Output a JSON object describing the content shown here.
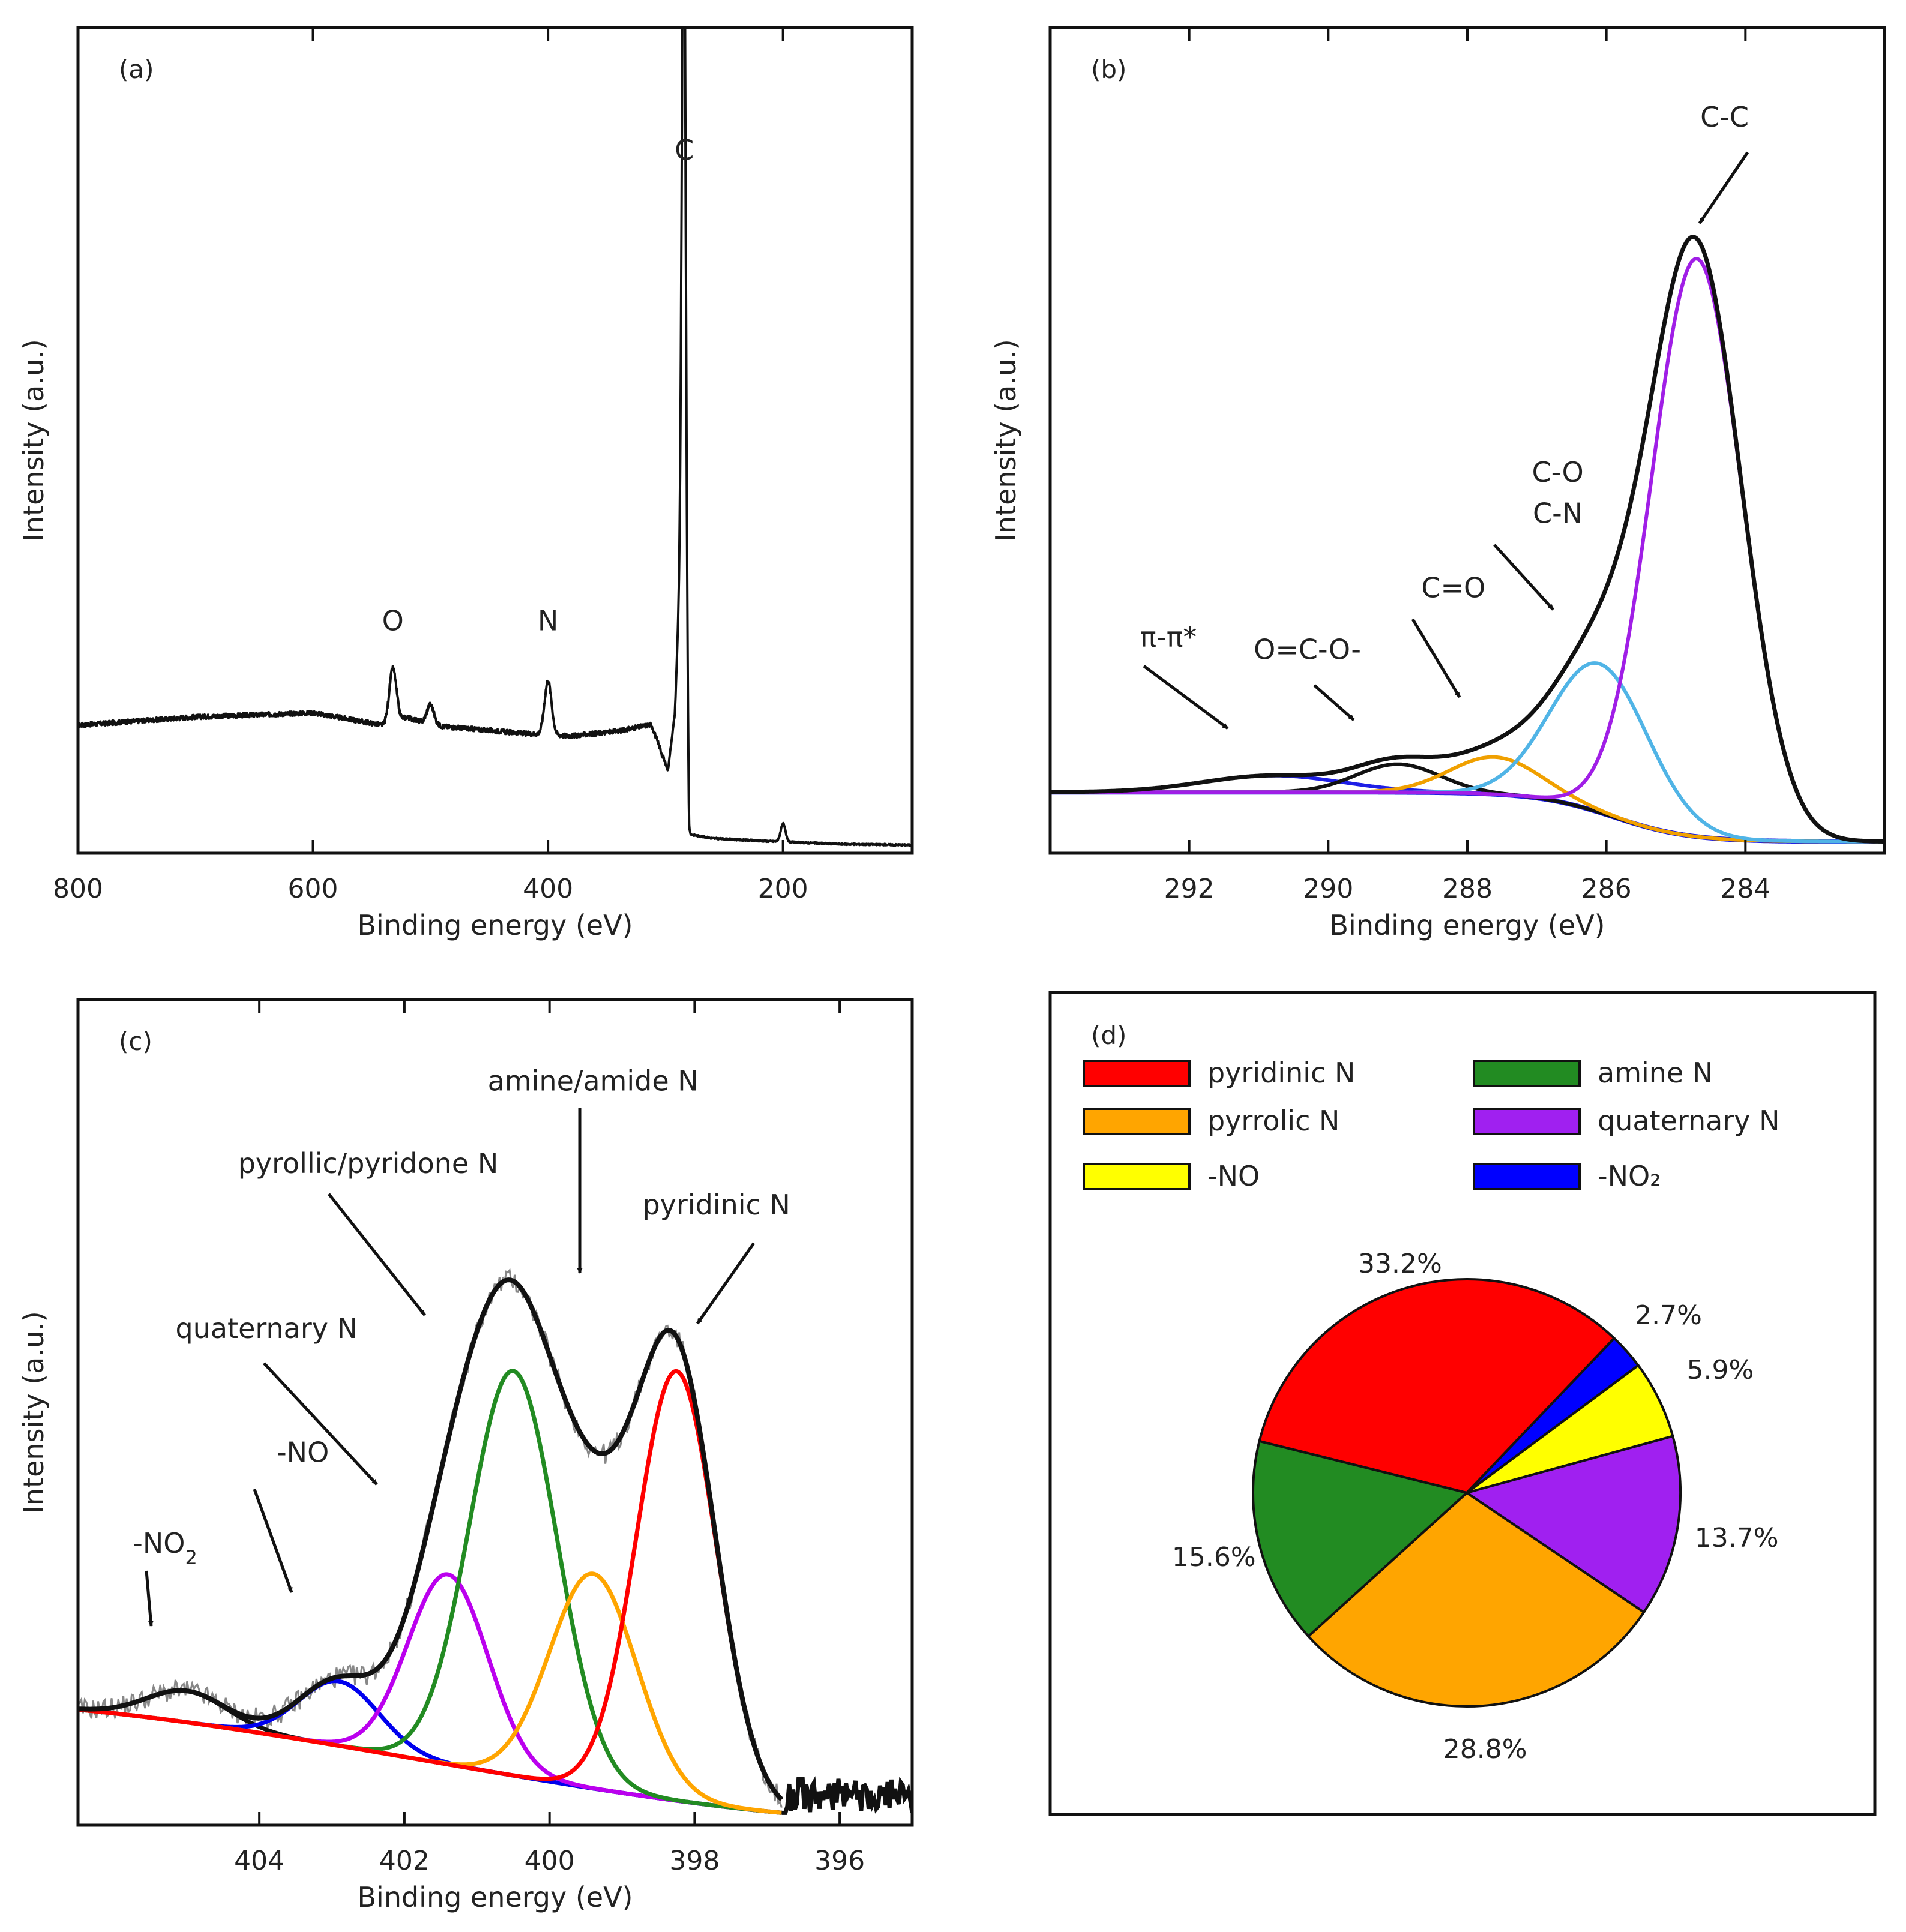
{
  "chart_data": [
    {
      "panel": "(a)",
      "type": "line",
      "xlabel": "Binding energy (eV)",
      "ylabel": "Intensity (a.u.)",
      "xlim": [
        800,
        90
      ],
      "ylim": [
        0,
        100
      ],
      "xticks": [
        800,
        600,
        400,
        200
      ],
      "xtick_labels": [
        "800",
        "600",
        "400",
        "200"
      ],
      "background_points": [
        [
          800,
          15.5
        ],
        [
          700,
          16.5
        ],
        [
          600,
          17
        ],
        [
          540,
          15.5
        ],
        [
          520,
          16.5
        ],
        [
          500,
          15.5
        ],
        [
          460,
          15
        ],
        [
          420,
          14.5
        ],
        [
          380,
          14.2
        ],
        [
          340,
          14.8
        ],
        [
          312,
          15.6
        ],
        [
          298,
          10
        ],
        [
          292,
          17
        ],
        [
          284,
          48
        ],
        [
          280,
          2.3
        ],
        [
          260,
          1.8
        ],
        [
          220,
          1.5
        ],
        [
          150,
          1.1
        ],
        [
          90,
          1
        ]
      ],
      "peaks": [
        {
          "label": "O",
          "center": 532,
          "height": 6.5,
          "width": 3
        },
        {
          "label": "",
          "center": 500,
          "height": 2.5,
          "width": 3
        },
        {
          "label": "N",
          "center": 400,
          "height": 6.5,
          "width": 3
        },
        {
          "label": "C",
          "center": 284.5,
          "height": 76,
          "width": 1.6
        },
        {
          "label": "",
          "center": 200,
          "height": 2.2,
          "width": 2
        }
      ],
      "annotations": [
        {
          "text": "O",
          "x": 532,
          "y": 27
        },
        {
          "text": "N",
          "x": 400,
          "y": 27
        },
        {
          "text": "C",
          "x": 284,
          "y": 84
        }
      ]
    },
    {
      "panel": "(b)",
      "type": "line",
      "xlabel": "Binding energy (eV)",
      "ylabel": "Intensity (a.u.)",
      "xlim": [
        294,
        282
      ],
      "ylim": [
        0,
        100
      ],
      "xticks": [
        292,
        290,
        288,
        286,
        284
      ],
      "xtick_labels": [
        "292",
        "290",
        "288",
        "286",
        "284"
      ],
      "background": {
        "high": 7.4,
        "low": 1.4,
        "center": 285.9,
        "width": 0.55
      },
      "series": [
        {
          "name": "C-C",
          "color": "#a01ee6",
          "center": 284.7,
          "amplitude": 70,
          "sigma": 0.65
        },
        {
          "name": "C-O / C-N",
          "color": "#50b4e6",
          "center": 286.1,
          "amplitude": 18,
          "sigma": 0.7
        },
        {
          "name": "C=O",
          "color": "#f0a000",
          "center": 287.6,
          "amplitude": 4.5,
          "sigma": 0.65
        },
        {
          "name": "O=C-O-",
          "color": "#111111",
          "center": 289.0,
          "amplitude": 3.4,
          "sigma": 0.6
        },
        {
          "name": "π-π*",
          "color": "#1e1ee6",
          "center": 290.8,
          "amplitude": 2.0,
          "sigma": 1.0
        }
      ],
      "annotations": [
        {
          "text": "C-C",
          "x": 284.3,
          "y": 88
        },
        {
          "text": "C-O",
          "x": 286.7,
          "y": 45
        },
        {
          "text": "C-N",
          "x": 286.7,
          "y": 40
        },
        {
          "text": "C=O",
          "x": 288.2,
          "y": 31
        },
        {
          "text": "O=C-O-",
          "x": 290.3,
          "y": 23.5
        },
        {
          "text": "π-π*",
          "x": 292.3,
          "y": 25
        }
      ]
    },
    {
      "panel": "(c)",
      "type": "line",
      "xlabel": "Binding energy (eV)",
      "ylabel": "Intensity (a.u.)",
      "xlim": [
        406.5,
        395
      ],
      "ylim": [
        0,
        100
      ],
      "xticks": [
        404,
        402,
        400,
        398,
        396
      ],
      "xtick_labels": [
        "404",
        "402",
        "400",
        "398",
        "396"
      ],
      "baseline": {
        "high": 14,
        "low": 1.5,
        "start": 406.5,
        "end": 396.8
      },
      "series": [
        {
          "name": "pyridinic N",
          "color": "#ff0000",
          "center": 398.25,
          "amplitude": 52,
          "sigma": 0.55
        },
        {
          "name": "amine/amide N",
          "color": "#ffa500",
          "center": 399.4,
          "amplitude": 26,
          "sigma": 0.6
        },
        {
          "name": "pyrollic/pyridone N",
          "color": "#228b22",
          "center": 400.5,
          "amplitude": 49,
          "sigma": 0.6
        },
        {
          "name": "quaternary N",
          "color": "#bb00ee",
          "center": 401.4,
          "amplitude": 23,
          "sigma": 0.55
        },
        {
          "name": "-NO",
          "color": "#0000ee",
          "center": 402.9,
          "amplitude": 7.8,
          "sigma": 0.55
        },
        {
          "name": "-NO2",
          "color": "#111111",
          "center": 405.0,
          "amplitude": 3.8,
          "sigma": 0.55
        }
      ],
      "annotations": [
        {
          "text": "amine/amide N",
          "x": 399.4,
          "y": 89
        },
        {
          "text": "pyrollic/pyridone N",
          "x": 402.5,
          "y": 79
        },
        {
          "text": "pyridinic N",
          "x": 397.7,
          "y": 74
        },
        {
          "text": "quaternary N",
          "x": 403.9,
          "y": 59
        },
        {
          "text": "-NO",
          "x": 403.4,
          "y": 44
        },
        {
          "text": "-NO",
          "sub": "2",
          "x": 405.3,
          "y": 33
        }
      ]
    },
    {
      "panel": "(d)",
      "type": "pie",
      "legend": [
        {
          "label": "pyridinic N",
          "color": "#ff0000"
        },
        {
          "label": "amine N",
          "color": "#228b22"
        },
        {
          "label": "pyrrolic N",
          "color": "#ffa500"
        },
        {
          "label": "quaternary N",
          "color": "#a020f0"
        },
        {
          "label": "-NO",
          "color": "#ffff00"
        },
        {
          "label": "-NO₂",
          "color": "#0000ff"
        }
      ],
      "slices": [
        {
          "label": "pyridinic N",
          "value": 33.2,
          "pct_label": "33.2%",
          "color": "#ff0000"
        },
        {
          "label": "-NO₂",
          "value": 2.7,
          "pct_label": "2.7%",
          "color": "#0000ff"
        },
        {
          "label": "-NO",
          "value": 5.9,
          "pct_label": "5.9%",
          "color": "#ffff00"
        },
        {
          "label": "quaternary N",
          "value": 13.7,
          "pct_label": "13.7%",
          "color": "#a020f0"
        },
        {
          "label": "pyrrolic N",
          "value": 28.8,
          "pct_label": "28.8%",
          "color": "#ffa500"
        },
        {
          "label": "amine N",
          "value": 15.6,
          "pct_label": "15.6%",
          "color": "#228b22"
        }
      ],
      "start_angle_deg": 166,
      "direction": "clockwise"
    }
  ]
}
